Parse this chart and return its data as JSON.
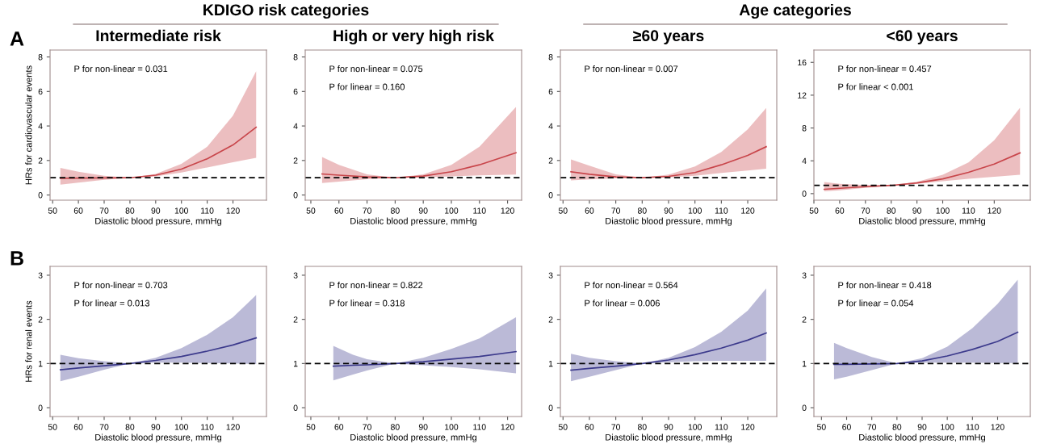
{
  "chart_data": [
    {
      "type": "line",
      "title": "Intermediate risk",
      "subtitle": "KDIGO risk categories",
      "xlabel": "Diastolic blood pressure, mmHg",
      "ylabel": "HRs for cardiovascular events",
      "annotations": [
        "A",
        "P for non-linear = 0.031"
      ],
      "xlim": [
        49,
        133
      ],
      "xticks": [
        50,
        60,
        70,
        80,
        90,
        100,
        110,
        120
      ],
      "ylim": [
        -0.3,
        8.4
      ],
      "yticks": [
        0,
        2,
        4,
        6,
        8
      ],
      "grid": false,
      "legend": false,
      "ref_lines": [
        {
          "axis": "y",
          "value": 1,
          "color": "#000000",
          "line_style": "dashed"
        }
      ],
      "series": [
        {
          "color": "#c8454a",
          "x": [
            53,
            60,
            70,
            80,
            90,
            100,
            110,
            120,
            129
          ],
          "values": [
            0.97,
            0.98,
            0.99,
            1.0,
            1.15,
            1.5,
            2.1,
            2.9,
            3.93
          ],
          "lower": [
            0.6,
            0.72,
            0.88,
            1.0,
            1.08,
            1.3,
            1.6,
            1.9,
            2.16
          ],
          "upper": [
            1.57,
            1.35,
            1.12,
            1.0,
            1.22,
            1.8,
            2.8,
            4.6,
            7.17
          ]
        }
      ]
    },
    {
      "type": "line",
      "title": "High or very high risk",
      "xlabel": "Diastolic blood pressure, mmHg",
      "annotations": [
        "P for non-linear = 0.075",
        "P for linear = 0.160"
      ],
      "xlim": [
        48,
        125
      ],
      "xticks": [
        50,
        60,
        70,
        80,
        90,
        100,
        110,
        120
      ],
      "ylim": [
        -0.3,
        8.4
      ],
      "yticks": [
        0,
        2,
        4,
        6,
        8
      ],
      "grid": false,
      "legend": false,
      "ref_lines": [
        {
          "axis": "y",
          "value": 1,
          "color": "#000000",
          "line_style": "dashed"
        }
      ],
      "series": [
        {
          "color": "#c8454a",
          "x": [
            54,
            60,
            70,
            80,
            90,
            100,
            110,
            123
          ],
          "values": [
            1.22,
            1.15,
            1.05,
            1.0,
            1.1,
            1.35,
            1.75,
            2.45
          ],
          "lower": [
            0.69,
            0.78,
            0.92,
            1.0,
            1.02,
            1.08,
            1.14,
            1.18
          ],
          "upper": [
            2.2,
            1.75,
            1.2,
            1.0,
            1.2,
            1.75,
            2.8,
            5.1
          ]
        }
      ]
    },
    {
      "type": "line",
      "title": "≥60 years",
      "subtitle": "Age categories",
      "xlabel": "Diastolic blood pressure, mmHg",
      "annotations": [
        "P for non-linear = 0.007"
      ],
      "xlim": [
        49,
        131
      ],
      "xticks": [
        50,
        60,
        70,
        80,
        90,
        100,
        110,
        120
      ],
      "ylim": [
        -0.3,
        8.4
      ],
      "yticks": [
        0,
        2,
        4,
        6,
        8
      ],
      "grid": false,
      "legend": false,
      "ref_lines": [
        {
          "axis": "y",
          "value": 1,
          "color": "#000000",
          "line_style": "dashed"
        }
      ],
      "series": [
        {
          "color": "#c8454a",
          "x": [
            53,
            60,
            70,
            80,
            90,
            100,
            110,
            120,
            127
          ],
          "values": [
            1.35,
            1.2,
            1.05,
            1.0,
            1.08,
            1.3,
            1.75,
            2.3,
            2.8
          ],
          "lower": [
            0.85,
            0.9,
            0.96,
            1.0,
            1.02,
            1.12,
            1.28,
            1.42,
            1.53
          ],
          "upper": [
            2.06,
            1.7,
            1.2,
            1.0,
            1.18,
            1.65,
            2.5,
            3.8,
            5.04
          ]
        }
      ]
    },
    {
      "type": "line",
      "title": "<60 years",
      "xlabel": "Diastolic blood pressure, mmHg",
      "annotations": [
        "P for non-linear = 0.457",
        "P for linear < 0.001"
      ],
      "xlim": [
        50,
        134
      ],
      "xticks": [
        50,
        60,
        70,
        80,
        90,
        100,
        110,
        120
      ],
      "ylim": [
        -0.8,
        17.5
      ],
      "yticks": [
        0,
        4,
        8,
        12,
        16
      ],
      "grid": false,
      "legend": false,
      "ref_lines": [
        {
          "axis": "y",
          "value": 1,
          "color": "#000000",
          "line_style": "dashed"
        }
      ],
      "series": [
        {
          "color": "#c8454a",
          "x": [
            54,
            60,
            70,
            80,
            90,
            100,
            110,
            120,
            130
          ],
          "values": [
            0.53,
            0.65,
            0.85,
            1.0,
            1.3,
            1.8,
            2.6,
            3.6,
            4.96
          ],
          "lower": [
            0.27,
            0.4,
            0.7,
            1.0,
            1.2,
            1.5,
            1.8,
            2.05,
            2.3
          ],
          "upper": [
            1.42,
            1.2,
            1.05,
            1.0,
            1.45,
            2.3,
            3.8,
            6.5,
            10.46
          ]
        }
      ]
    },
    {
      "type": "line",
      "xlabel": "Diastolic blood pressure, mmHg",
      "ylabel": "HRs for renal events",
      "annotations": [
        "B",
        "P for non-linear = 0.703",
        "P for linear = 0.013"
      ],
      "xlim": [
        49,
        133
      ],
      "xticks": [
        50,
        60,
        70,
        80,
        90,
        100,
        110,
        120
      ],
      "ylim": [
        -0.2,
        3.2
      ],
      "yticks": [
        0,
        1,
        2,
        3
      ],
      "grid": false,
      "legend": false,
      "ref_lines": [
        {
          "axis": "y",
          "value": 1,
          "color": "#000000",
          "line_style": "dashed"
        }
      ],
      "series": [
        {
          "color": "#3c3a8c",
          "x": [
            53,
            60,
            70,
            80,
            90,
            100,
            110,
            120,
            129
          ],
          "values": [
            0.86,
            0.9,
            0.95,
            1.0,
            1.07,
            1.16,
            1.28,
            1.42,
            1.58
          ],
          "lower": [
            0.6,
            0.7,
            0.86,
            1.0,
            1.02,
            1.02,
            1.01,
            1.0,
            0.99
          ],
          "upper": [
            1.2,
            1.12,
            1.05,
            1.0,
            1.13,
            1.35,
            1.65,
            2.05,
            2.55
          ]
        }
      ]
    },
    {
      "type": "line",
      "xlabel": "Diastolic blood pressure, mmHg",
      "annotations": [
        "P for non-linear = 0.822",
        "P for linear = 0.318"
      ],
      "xlim": [
        48,
        125
      ],
      "xticks": [
        50,
        60,
        70,
        80,
        90,
        100,
        110,
        120
      ],
      "ylim": [
        -0.2,
        3.2
      ],
      "yticks": [
        0,
        1,
        2,
        3
      ],
      "grid": false,
      "legend": false,
      "ref_lines": [
        {
          "axis": "y",
          "value": 1,
          "color": "#000000",
          "line_style": "dashed"
        }
      ],
      "series": [
        {
          "color": "#3c3a8c",
          "x": [
            58,
            65,
            70,
            80,
            90,
            100,
            110,
            123
          ],
          "values": [
            0.94,
            0.96,
            0.97,
            1.0,
            1.04,
            1.1,
            1.16,
            1.27
          ],
          "lower": [
            0.62,
            0.75,
            0.84,
            1.0,
            0.96,
            0.92,
            0.87,
            0.78
          ],
          "upper": [
            1.4,
            1.2,
            1.1,
            1.0,
            1.13,
            1.33,
            1.57,
            2.05
          ]
        }
      ]
    },
    {
      "type": "line",
      "xlabel": "Diastolic blood pressure, mmHg",
      "annotations": [
        "P for non-linear = 0.564",
        "P for linear = 0.006"
      ],
      "xlim": [
        49,
        131
      ],
      "xticks": [
        50,
        60,
        70,
        80,
        90,
        100,
        110,
        120
      ],
      "ylim": [
        -0.2,
        3.2
      ],
      "yticks": [
        0,
        1,
        2,
        3
      ],
      "grid": false,
      "legend": false,
      "ref_lines": [
        {
          "axis": "y",
          "value": 1,
          "color": "#000000",
          "line_style": "dashed"
        }
      ],
      "series": [
        {
          "color": "#3c3a8c",
          "x": [
            53,
            60,
            70,
            80,
            90,
            100,
            110,
            120,
            127
          ],
          "values": [
            0.85,
            0.89,
            0.94,
            1.0,
            1.08,
            1.2,
            1.35,
            1.53,
            1.69
          ],
          "lower": [
            0.6,
            0.7,
            0.85,
            1.0,
            1.03,
            1.05,
            1.06,
            1.06,
            1.06
          ],
          "upper": [
            1.22,
            1.13,
            1.05,
            1.0,
            1.13,
            1.37,
            1.72,
            2.2,
            2.7
          ]
        }
      ]
    },
    {
      "type": "line",
      "xlabel": "Diastolic blood pressure, mmHg",
      "annotations": [
        "P for non-linear = 0.418",
        "P for linear = 0.054"
      ],
      "xlim": [
        47,
        133
      ],
      "xticks": [
        50,
        60,
        70,
        80,
        90,
        100,
        110,
        120
      ],
      "ylim": [
        -0.2,
        3.2
      ],
      "yticks": [
        0,
        1,
        2,
        3
      ],
      "grid": false,
      "legend": false,
      "ref_lines": [
        {
          "axis": "y",
          "value": 1,
          "color": "#000000",
          "line_style": "dashed"
        }
      ],
      "series": [
        {
          "color": "#3c3a8c",
          "x": [
            55,
            60,
            70,
            80,
            90,
            100,
            110,
            120,
            128
          ],
          "values": [
            0.98,
            0.98,
            0.99,
            1.0,
            1.06,
            1.17,
            1.32,
            1.5,
            1.71
          ],
          "lower": [
            0.64,
            0.7,
            0.85,
            1.0,
            1.02,
            1.02,
            1.02,
            1.01,
            1.01
          ],
          "upper": [
            1.47,
            1.35,
            1.15,
            1.0,
            1.12,
            1.38,
            1.8,
            2.35,
            2.9
          ]
        }
      ]
    }
  ]
}
